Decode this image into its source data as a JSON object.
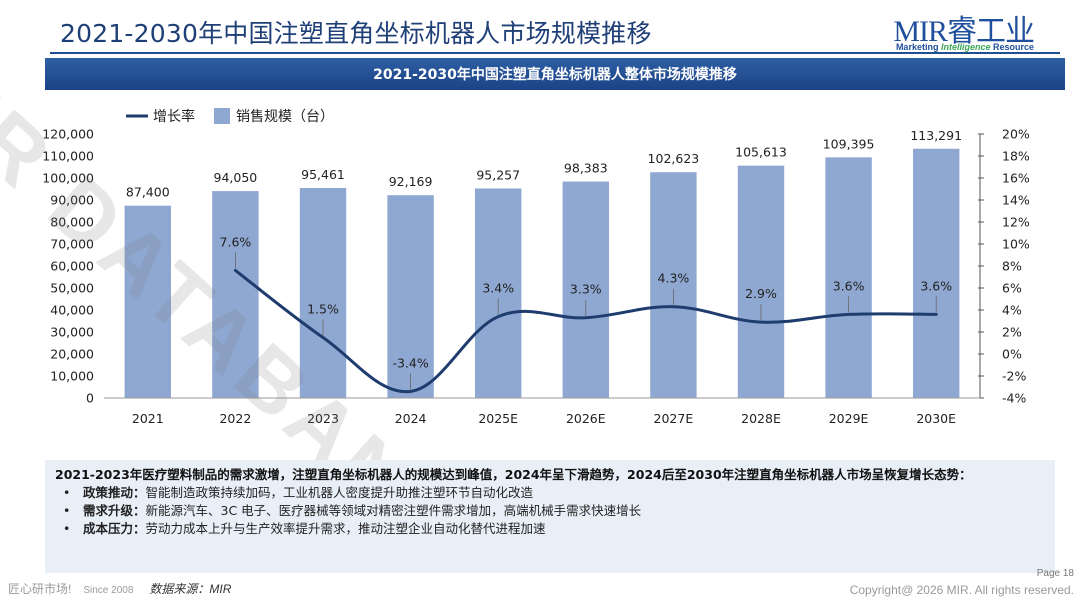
{
  "page": {
    "title": "2021-2030年中国注塑直角坐标机器人市场规模推移"
  },
  "logo": {
    "main": "MIR睿工业",
    "tag_a": "Marketing ",
    "tag_b": "Intelligence",
    "tag_c": " Resource"
  },
  "watermark": "MIR DATABANK",
  "chart_data": {
    "type": "bar",
    "title": "2021-2030年中国注塑直角坐标机器人整体市场规模推移",
    "categories": [
      "2021",
      "2022",
      "2023",
      "2024",
      "2025E",
      "2026E",
      "2027E",
      "2028E",
      "2029E",
      "2030E"
    ],
    "series": [
      {
        "name": "销售规模（台）",
        "type": "bar",
        "axis": "left",
        "values": [
          87400,
          94050,
          95461,
          92169,
          95257,
          98383,
          102623,
          105613,
          109395,
          113291
        ],
        "labels": [
          "87,400",
          "94,050",
          "95,461",
          "92,169",
          "95,257",
          "98,383",
          "102,623",
          "105,613",
          "109,395",
          "113,291"
        ],
        "color": "#8fa8d2"
      },
      {
        "name": "增长率",
        "type": "line",
        "axis": "right",
        "values": [
          null,
          7.6,
          1.5,
          -3.4,
          3.4,
          3.3,
          4.3,
          2.9,
          3.6,
          3.6
        ],
        "labels": [
          "",
          "7.6%",
          "1.5%",
          "-3.4%",
          "3.4%",
          "3.3%",
          "4.3%",
          "2.9%",
          "3.6%",
          "3.6%"
        ],
        "color": "#1f3c6e"
      }
    ],
    "ylim_left": [
      0,
      120000
    ],
    "ylim_right": [
      -4,
      20
    ],
    "yticks_left": [
      "0",
      "10,000",
      "20,000",
      "30,000",
      "40,000",
      "50,000",
      "60,000",
      "70,000",
      "80,000",
      "90,000",
      "100,000",
      "110,000",
      "120,000"
    ],
    "yticks_right": [
      "-4%",
      "-2%",
      "0%",
      "2%",
      "4%",
      "6%",
      "8%",
      "10%",
      "12%",
      "14%",
      "16%",
      "18%",
      "20%"
    ],
    "legend": "top-left",
    "grid": false
  },
  "insight": {
    "headline": "2021-2023年医疗塑料制品的需求激增，注塑直角坐标机器人的规模达到峰值，2024年呈下滑趋势，2024后至2030年注塑直角坐标机器人市场呈恢复增长态势：",
    "bullets": [
      {
        "key": "政策推动：",
        "text": "智能制造政策持续加码，工业机器人密度提升助推注塑环节自动化改造"
      },
      {
        "key": "需求升级：",
        "text": "新能源汽车、3C 电子、医疗器械等领域对精密注塑件需求增加，高端机械手需求快速增长"
      },
      {
        "key": "成本压力：",
        "text": "劳动力成本上升与生产效率提升需求，推动注塑企业自动化替代进程加速"
      }
    ]
  },
  "footer": {
    "brand": "匠心研市场!",
    "since": "Since 2008",
    "source": "数据来源：MIR",
    "page": "Page 18",
    "copyright": "Copyright@ 2026 MIR. All rights reserved."
  }
}
